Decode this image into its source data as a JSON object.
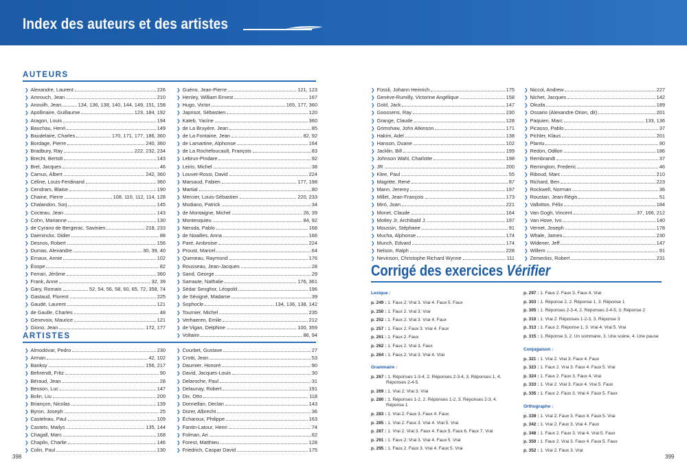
{
  "header": {
    "title": "Index des auteurs et des artistes"
  },
  "auteurs": {
    "title": "AUTEURS",
    "columns": [
      [
        {
          "name": "Alexandre, Laurent",
          "pages": "226"
        },
        {
          "name": "Amrouch, Jean",
          "pages": "210"
        },
        {
          "name": "Anouilh, Jean",
          "pages": "134, 136, 138, 140, 144, 149, 151, 158"
        },
        {
          "name": "Apollinaire, Guillaume",
          "pages": "123, 184, 192"
        },
        {
          "name": "Aragon, Louis",
          "pages": "194"
        },
        {
          "name": "Bauchau, Henri",
          "pages": "149"
        },
        {
          "name": "Baudelaire, Charles",
          "pages": "170, 171, 177, 186, 360"
        },
        {
          "name": "Bordage, Pierre",
          "pages": "240, 360"
        },
        {
          "name": "Bradbury, Ray",
          "pages": "222, 232, 234"
        },
        {
          "name": "Brecht, Bertolt",
          "pages": "143"
        },
        {
          "name": "Brel, Jacques",
          "pages": "46"
        },
        {
          "name": "Camus, Albert",
          "pages": "242, 360"
        },
        {
          "name": "Céline, Louis-Ferdinand",
          "pages": "360"
        },
        {
          "name": "Cendrars, Blaise",
          "pages": "190"
        },
        {
          "name": "Chaine, Pierre",
          "pages": "108, 110, 112, 114, 128"
        },
        {
          "name": "Chalandon, Sorj",
          "pages": "145"
        },
        {
          "name": "Cocteau, Jean",
          "pages": "143"
        },
        {
          "name": "Cohn, Marianne",
          "pages": "130"
        },
        {
          "name": "de Cyrano de Bergerac, Savinien",
          "pages": "218, 233"
        },
        {
          "name": "Daeninckx, Didier",
          "pages": "88"
        },
        {
          "name": "Desnos, Robert",
          "pages": "156"
        },
        {
          "name": "Dumas, Alexandre",
          "pages": "30, 39, 40"
        },
        {
          "name": "Ernaux, Annie",
          "pages": "102"
        },
        {
          "name": "Ésope",
          "pages": "82"
        },
        {
          "name": "Ferrari, Jérôme",
          "pages": "360"
        },
        {
          "name": "Frank, Anne",
          "pages": "32, 39"
        },
        {
          "name": "Gary, Romain",
          "pages": "52, 54, 56, 58, 60, 65, 72, 358, 74"
        },
        {
          "name": "Gastaud, Florent",
          "pages": "225"
        },
        {
          "name": "Gaudé, Laurent",
          "pages": "121"
        },
        {
          "name": "de Gaulle, Charles",
          "pages": "48"
        },
        {
          "name": "Genevoix, Maurice",
          "pages": "121"
        },
        {
          "name": "Giono, Jean",
          "pages": "172, 177"
        }
      ],
      [
        {
          "name": "Guéno, Jean-Pierre",
          "pages": "121, 123"
        },
        {
          "name": "Henley, William Ernest",
          "pages": "167"
        },
        {
          "name": "Hugo, Victor",
          "pages": "165, 177, 360"
        },
        {
          "name": "Japrisot, Sébastien",
          "pages": "120"
        },
        {
          "name": "Kateb, Yacine",
          "pages": "360"
        },
        {
          "name": "de La Bruyère, Jean",
          "pages": "85"
        },
        {
          "name": "de La Fontaine, Jean",
          "pages": "82, 92"
        },
        {
          "name": "de Lamartine, Alphonse",
          "pages": "164"
        },
        {
          "name": "de La Rochefoucault, François",
          "pages": "83"
        },
        {
          "name": "Lebrun-Pindare",
          "pages": "92"
        },
        {
          "name": "Leiris, Michel",
          "pages": "38"
        },
        {
          "name": "Louvet-Rossi, David",
          "pages": "224"
        },
        {
          "name": "Marsaud, Fabien",
          "pages": "177, 198"
        },
        {
          "name": "Martial",
          "pages": "80"
        },
        {
          "name": "Mercier, Louis-Sébastien",
          "pages": "220, 233"
        },
        {
          "name": "Modiano, Patrick",
          "pages": "34"
        },
        {
          "name": "de Montaigne, Michel",
          "pages": "26, 39"
        },
        {
          "name": "Montesquieu",
          "pages": "84, 92"
        },
        {
          "name": "Neruda, Pablo",
          "pages": "168"
        },
        {
          "name": "de Noailles, Anna",
          "pages": "166"
        },
        {
          "name": "Paré, Ambroise",
          "pages": "224"
        },
        {
          "name": "Proust, Marcel",
          "pages": "64"
        },
        {
          "name": "Queneau, Raymond",
          "pages": "176"
        },
        {
          "name": "Rousseau, Jean-Jacques",
          "pages": "28"
        },
        {
          "name": "Sand, George",
          "pages": "29"
        },
        {
          "name": "Sarraute, Nathalie",
          "pages": "176, 361"
        },
        {
          "name": "Sédar Senghor, Léopold",
          "pages": "196"
        },
        {
          "name": "de Sévigné, Madame",
          "pages": "39"
        },
        {
          "name": "Sophocle",
          "pages": "134, 136, 138, 142"
        },
        {
          "name": "Tournier, Michel",
          "pages": "235"
        },
        {
          "name": "Verhaeren, Emile",
          "pages": "212"
        },
        {
          "name": "de Vigan, Delphine",
          "pages": "100, 359"
        },
        {
          "name": "Voltaire",
          "pages": "86, 94"
        }
      ],
      [
        {
          "name": "Füssli, Johann Heinrich",
          "pages": "175"
        },
        {
          "name": "Genève-Rumilly, Victorine Angélique",
          "pages": "158"
        },
        {
          "name": "Gold, Jack",
          "pages": "147"
        },
        {
          "name": "Goossens, Ray",
          "pages": "230"
        },
        {
          "name": "Grange, Claude",
          "pages": "128"
        },
        {
          "name": "Grimshaw, John Atkinson",
          "pages": "171"
        },
        {
          "name": "Hakim, Adel",
          "pages": "138"
        },
        {
          "name": "Hanson, Duane",
          "pages": "102"
        },
        {
          "name": "Jacklin, Bill",
          "pages": "199"
        },
        {
          "name": "Johnson Wahl, Charlotte",
          "pages": "198"
        },
        {
          "name": "JR",
          "pages": "200"
        },
        {
          "name": "Klee, Paul",
          "pages": "55"
        },
        {
          "name": "Magritte, René",
          "pages": "87"
        },
        {
          "name": "Mann, Jeremy",
          "pages": "197"
        },
        {
          "name": "Millet, Jean-François",
          "pages": "173"
        },
        {
          "name": "Miró, Joan",
          "pages": "221"
        },
        {
          "name": "Monet, Claude",
          "pages": "164"
        },
        {
          "name": "Motley Jr, Archibald J.",
          "pages": "197"
        },
        {
          "name": "Moussin, Stéphane",
          "pages": "91"
        },
        {
          "name": "Mucha, Alphonse",
          "pages": "174"
        },
        {
          "name": "Munch, Edvard",
          "pages": "174"
        },
        {
          "name": "Nelson, Ralph",
          "pages": "228"
        },
        {
          "name": "Nevinson, Christophe Richard Wynne",
          "pages": "111"
        }
      ],
      [
        {
          "name": "Niccol, Andrew",
          "pages": "227"
        },
        {
          "name": "Nichet, Jacques",
          "pages": "142"
        },
        {
          "name": "Okuda",
          "pages": "189"
        },
        {
          "name": "Ossario (Alexandre Orion, dit)",
          "pages": "201"
        },
        {
          "name": "Paquien, Marc",
          "pages": "133, 136"
        },
        {
          "name": "Picasso, Pablo",
          "pages": "37"
        },
        {
          "name": "Pichler, Klaus",
          "pages": "201"
        },
        {
          "name": "Plantu",
          "pages": "90"
        },
        {
          "name": "Redon, Odilon",
          "pages": "186"
        },
        {
          "name": "Rembrandt",
          "pages": "37"
        },
        {
          "name": "Remington, Frederic",
          "pages": "46"
        },
        {
          "name": "Riboud, Marc",
          "pages": "210"
        },
        {
          "name": "Richard, Ben",
          "pages": "223"
        },
        {
          "name": "Rockwell, Norman",
          "pages": "36"
        },
        {
          "name": "Roustan, Jean-Régis",
          "pages": "51"
        },
        {
          "name": "Vallotton, Félix",
          "pages": "184"
        },
        {
          "name": "Van Gogh, Vincent",
          "pages": "37, 166, 212"
        },
        {
          "name": "Van Hove, Ivo",
          "pages": "140"
        },
        {
          "name": "Vernet, Joseph",
          "pages": "178"
        },
        {
          "name": "Whale, James",
          "pages": "230"
        },
        {
          "name": "Widener, Jeff",
          "pages": "147"
        },
        {
          "name": "Willem",
          "pages": "91"
        },
        {
          "name": "Zemeckis, Robert",
          "pages": "231"
        }
      ]
    ]
  },
  "artistes": {
    "title": "ARTISTES",
    "columns": [
      [
        {
          "name": "Almodóvar, Pedro",
          "pages": "230"
        },
        {
          "name": "Arman",
          "pages": "42, 102"
        },
        {
          "name": "Banksy",
          "pages": "156, 217"
        },
        {
          "name": "Behrendt, Fritz",
          "pages": "90"
        },
        {
          "name": "Béraud, Jean",
          "pages": "28"
        },
        {
          "name": "Besson, Luc",
          "pages": "147"
        },
        {
          "name": "Bolin, Liu",
          "pages": "200"
        },
        {
          "name": "Briançon, Nicolas",
          "pages": "139"
        },
        {
          "name": "Byron, Joseph",
          "pages": "25"
        },
        {
          "name": "Castelnau, Paul",
          "pages": "109"
        },
        {
          "name": "Castets, Mailys",
          "pages": "135, 144"
        },
        {
          "name": "Chagall, Marc",
          "pages": "168"
        },
        {
          "name": "Chaplin, Charlie",
          "pages": "146"
        },
        {
          "name": "Colin, Paul",
          "pages": "130"
        }
      ],
      [
        {
          "name": "Courbet, Gustave",
          "pages": "27"
        },
        {
          "name": "Crotti, Jean",
          "pages": "53"
        },
        {
          "name": "Daumier, Honoré",
          "pages": "90"
        },
        {
          "name": "David, Jacques-Louis",
          "pages": "30"
        },
        {
          "name": "Delaroche, Paul",
          "pages": "31"
        },
        {
          "name": "Delaunay, Robert",
          "pages": "191"
        },
        {
          "name": "Dix, Otto",
          "pages": "118"
        },
        {
          "name": "Donnellan, Declan",
          "pages": "143"
        },
        {
          "name": "Dürer, Albrecht",
          "pages": "36"
        },
        {
          "name": "Écharoux, Philippe",
          "pages": "163"
        },
        {
          "name": "Fantin-Latour, Henri",
          "pages": "74"
        },
        {
          "name": "Folman, Ari",
          "pages": "62"
        },
        {
          "name": "Forest, Matthieu",
          "pages": "128"
        },
        {
          "name": "Friedrich, Caspar David",
          "pages": "175"
        }
      ]
    ]
  },
  "corrige": {
    "title": "Corrigé des exercices",
    "title_italic": "Vérifier",
    "left": [
      {
        "type": "head",
        "text": "Lexique :"
      },
      {
        "type": "item",
        "p": "p. 249 :",
        "t": "1. Faux 2. Vrai 3. Vrai 4. Faux 5. Faux"
      },
      {
        "type": "item",
        "p": "p. 250 :",
        "t": "1. Faux 2. Vrai 3. Vrai"
      },
      {
        "type": "item",
        "p": "p. 252 :",
        "t": "1. Faux 2. Vrai 3. Vrai 4. Faux"
      },
      {
        "type": "item",
        "p": "p. 257 :",
        "t": "1. Faux 2. Faux 3. Vrai 4. Faux"
      },
      {
        "type": "item",
        "p": "p. 261 :",
        "t": "1. Faux 2. Faux"
      },
      {
        "type": "item",
        "p": "p. 262 :",
        "t": "1. Faux 2. Vrai 3. Faux"
      },
      {
        "type": "item",
        "p": "p. 264 :",
        "t": "1. Faux 2. Vrai 3. Vrai 4. Vrai"
      },
      {
        "type": "gap"
      },
      {
        "type": "head",
        "text": "Grammaire :"
      },
      {
        "type": "item",
        "p": "p. 267 :",
        "t": "1. Réponses 1-3-4, 2. Réponses 2-3-4, 3. Réponses 1, 4. Réponses 2-4-5."
      },
      {
        "type": "item",
        "p": "p. 269 :",
        "t": "1. Vrai 2. Vrai 3. Vrai"
      },
      {
        "type": "item",
        "p": "p. 280 :",
        "t": "1. Réponses 1-2, 2. Réponses 1-2, 3. Réponses 2-3, 4. Réponse 1"
      },
      {
        "type": "item",
        "p": "p. 283 :",
        "t": "1. Vrai 2. Faux 3. Faux 4. Faux"
      },
      {
        "type": "item",
        "p": "p. 285 :",
        "t": "1. Vrai 2. Faux 3. Vrai 4. Vrai 5. Vrai"
      },
      {
        "type": "item",
        "p": "p. 287 :",
        "t": "1. Vrai 2. Vrai 3. Faux 4. Faux 5. Faux 6. Faux 7. Vrai"
      },
      {
        "type": "item",
        "p": "p. 291 :",
        "t": "1. Faux 2. Vrai 3. Vrai 4. Faux 5. Vrai"
      },
      {
        "type": "item",
        "p": "p. 295 :",
        "t": "1. Faux 2. Faux 3. Vrai 4. Faux 5. Vrai"
      }
    ],
    "right": [
      {
        "type": "item",
        "p": "p. 297 :",
        "t": "1. Faux 2. Faux 3. Faux 4. Vrai"
      },
      {
        "type": "item",
        "p": "p. 303 :",
        "t": "1. Réponse 2, 2. Réponse 1, 3. Réponse 1"
      },
      {
        "type": "item",
        "p": "p. 305 :",
        "t": "1. Réponses 2-3-4, 2. Réponses 2-4-5, 3. Réponse 2"
      },
      {
        "type": "item",
        "p": "p. 310 :",
        "t": "1. Vrai 2. Réponses 1-2-3, 3. Réponse 3"
      },
      {
        "type": "item",
        "p": "p. 313 :",
        "t": "1. Faux 2. Réponse 1, 3. Vrai 4. Vrai 5. Vrai"
      },
      {
        "type": "item",
        "p": "p. 315 :",
        "t": "1. Réponse 3, 2. Un sommaire, 3. Une scène, 4. Une pause"
      },
      {
        "type": "gap"
      },
      {
        "type": "head",
        "text": "Conjugaison :"
      },
      {
        "type": "item",
        "p": "p. 321 :",
        "t": "1. Vrai 2. Vrai 3. Faux 4. Faux"
      },
      {
        "type": "item",
        "p": "p. 323 :",
        "t": "1. Faux 2. Vrai 3. Faux 4. Faux 5. Vrai"
      },
      {
        "type": "item",
        "p": "p. 324 :",
        "t": "1. Faux 2. Faux 3. Faux 4. Vrai"
      },
      {
        "type": "item",
        "p": "p. 333 :",
        "t": "1. Vrai 2. Vrai 3. Faux 4. Vrai 5. Faux"
      },
      {
        "type": "item",
        "p": "p. 335 :",
        "t": "1. Faux 2. Faux 3. Vrai 4. Faux 5. Faux"
      },
      {
        "type": "gap"
      },
      {
        "type": "head",
        "text": "Orthographe :"
      },
      {
        "type": "item",
        "p": "p. 339 :",
        "t": "1. Vrai 2. Faux 3. Faux 4. Faux 5. Vrai"
      },
      {
        "type": "item",
        "p": "p. 342 :",
        "t": "1. Vrai 2. Faux 3. Vrai 4. Faux"
      },
      {
        "type": "item",
        "p": "p. 348 :",
        "t": "1. Faux 2. Faux 3. Vrai 4. Vrai 5. Faux"
      },
      {
        "type": "item",
        "p": "p. 350 :",
        "t": "1. Faux 2. Vrai 3. Faux 4. Faux 5. Faux"
      },
      {
        "type": "item",
        "p": "p. 352 :",
        "t": "1. Vrai 2. Faux 3. Vrai"
      }
    ]
  },
  "page_numbers": {
    "left": "398",
    "right": "399"
  }
}
